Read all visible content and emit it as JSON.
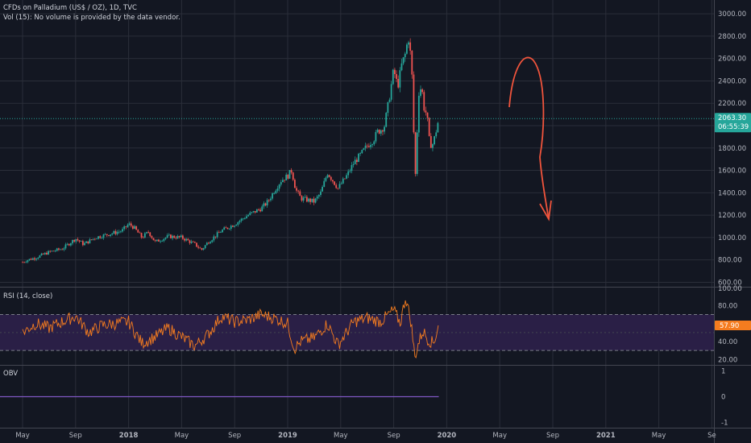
{
  "header": {
    "symbol_line": "CFDs on Palladium (US$ / OZ), 1D, TVC",
    "volume_line": "Vol (15): No volume is provided by the data vendor."
  },
  "indicators": {
    "rsi_label": "RSI (14, close)",
    "obv_label": "OBV"
  },
  "badges": {
    "last_price": "2063.30",
    "countdown": "06:55:39",
    "rsi_value": "57.90"
  },
  "colors": {
    "background": "#131722",
    "grid": "#2a2e39",
    "up": "#26a69a",
    "down": "#ef5350",
    "rsi_line": "#f57c1f",
    "rsi_band": "#2a1f46",
    "obv_line": "#7e57c2",
    "drawing": "#f0543c",
    "text": "#b2b5be"
  },
  "chart_data": [
    {
      "type": "candlestick",
      "title": "CFDs on Palladium (US$ / OZ), 1D, TVC",
      "y_axis_ticks": [
        600,
        800,
        1000,
        1200,
        1400,
        1600,
        1800,
        2000,
        2200,
        2400,
        2600,
        2800,
        3000
      ],
      "ylim": [
        560,
        3080
      ],
      "x_axis_ticks": [
        "May",
        "Sep",
        "2018",
        "May",
        "Sep",
        "2019",
        "May",
        "Sep",
        "2020",
        "May",
        "Sep",
        "2021",
        "May",
        "Se"
      ],
      "last_price": 2063.3,
      "price_path": [
        {
          "t": 0,
          "p": 780
        },
        {
          "t": 0.4,
          "p": 800
        },
        {
          "t": 1,
          "p": 820
        },
        {
          "t": 2,
          "p": 870
        },
        {
          "t": 3,
          "p": 900
        },
        {
          "t": 4,
          "p": 990
        },
        {
          "t": 4.6,
          "p": 940
        },
        {
          "t": 5.5,
          "p": 1000
        },
        {
          "t": 6.5,
          "p": 1030
        },
        {
          "t": 7.5,
          "p": 1060
        },
        {
          "t": 8,
          "p": 1120
        },
        {
          "t": 8.4,
          "p": 1090
        },
        {
          "t": 9,
          "p": 1000
        },
        {
          "t": 9.5,
          "p": 1050
        },
        {
          "t": 10,
          "p": 960
        },
        {
          "t": 11,
          "p": 1010
        },
        {
          "t": 12,
          "p": 1000
        },
        {
          "t": 13,
          "p": 940
        },
        {
          "t": 13.5,
          "p": 890
        },
        {
          "t": 14,
          "p": 960
        },
        {
          "t": 15,
          "p": 1060
        },
        {
          "t": 16,
          "p": 1120
        },
        {
          "t": 17,
          "p": 1200
        },
        {
          "t": 18,
          "p": 1260
        },
        {
          "t": 18.5,
          "p": 1320
        },
        {
          "t": 19,
          "p": 1420
        },
        {
          "t": 19.5,
          "p": 1510
        },
        {
          "t": 20,
          "p": 1550
        },
        {
          "t": 20.3,
          "p": 1600
        },
        {
          "t": 20.6,
          "p": 1430
        },
        {
          "t": 21,
          "p": 1350
        },
        {
          "t": 21.7,
          "p": 1330
        },
        {
          "t": 22,
          "p": 1320
        },
        {
          "t": 22.5,
          "p": 1400
        },
        {
          "t": 23,
          "p": 1580
        },
        {
          "t": 23.4,
          "p": 1510
        },
        {
          "t": 23.8,
          "p": 1440
        },
        {
          "t": 24.5,
          "p": 1560
        },
        {
          "t": 25,
          "p": 1670
        },
        {
          "t": 25.5,
          "p": 1740
        },
        {
          "t": 26,
          "p": 1820
        },
        {
          "t": 26.5,
          "p": 1880
        },
        {
          "t": 26.8,
          "p": 1950
        },
        {
          "t": 27,
          "p": 1960
        },
        {
          "t": 27.3,
          "p": 2000
        },
        {
          "t": 27.6,
          "p": 2200
        },
        {
          "t": 28,
          "p": 2500
        },
        {
          "t": 28.3,
          "p": 2350
        },
        {
          "t": 28.6,
          "p": 2540
        },
        {
          "t": 28.9,
          "p": 2650
        },
        {
          "t": 29.1,
          "p": 2800
        },
        {
          "t": 29.3,
          "p": 2600
        },
        {
          "t": 29.45,
          "p": 2300
        },
        {
          "t": 29.55,
          "p": 1700
        },
        {
          "t": 29.65,
          "p": 1550
        },
        {
          "t": 29.75,
          "p": 1900
        },
        {
          "t": 29.9,
          "p": 2300
        },
        {
          "t": 30.1,
          "p": 2350
        },
        {
          "t": 30.3,
          "p": 2150
        },
        {
          "t": 30.5,
          "p": 2100
        },
        {
          "t": 30.7,
          "p": 1850
        },
        {
          "t": 30.9,
          "p": 1820
        },
        {
          "t": 31.1,
          "p": 1900
        },
        {
          "t": 31.4,
          "p": 2063
        }
      ]
    },
    {
      "type": "line",
      "title": "RSI (14, close)",
      "y_axis_ticks": [
        20,
        40,
        60,
        80,
        100
      ],
      "ylim": [
        14,
        100
      ],
      "band": [
        30,
        70
      ],
      "last_value": 57.9,
      "rsi_path": [
        {
          "t": 0,
          "p": 50
        },
        {
          "t": 1,
          "p": 60
        },
        {
          "t": 2,
          "p": 55
        },
        {
          "t": 3,
          "p": 62
        },
        {
          "t": 4,
          "p": 68
        },
        {
          "t": 5,
          "p": 50
        },
        {
          "t": 6,
          "p": 58
        },
        {
          "t": 7,
          "p": 60
        },
        {
          "t": 8,
          "p": 62
        },
        {
          "t": 9,
          "p": 38
        },
        {
          "t": 10,
          "p": 45
        },
        {
          "t": 11,
          "p": 55
        },
        {
          "t": 12,
          "p": 45
        },
        {
          "t": 13,
          "p": 35
        },
        {
          "t": 14,
          "p": 48
        },
        {
          "t": 15,
          "p": 68
        },
        {
          "t": 16,
          "p": 62
        },
        {
          "t": 17,
          "p": 64
        },
        {
          "t": 18,
          "p": 70
        },
        {
          "t": 19,
          "p": 66
        },
        {
          "t": 20,
          "p": 60
        },
        {
          "t": 20.5,
          "p": 32
        },
        {
          "t": 21,
          "p": 40
        },
        {
          "t": 22,
          "p": 44
        },
        {
          "t": 23,
          "p": 60
        },
        {
          "t": 23.8,
          "p": 36
        },
        {
          "t": 25,
          "p": 62
        },
        {
          "t": 26,
          "p": 66
        },
        {
          "t": 27,
          "p": 62
        },
        {
          "t": 28,
          "p": 75
        },
        {
          "t": 28.5,
          "p": 60
        },
        {
          "t": 28.9,
          "p": 90
        },
        {
          "t": 29.3,
          "p": 62
        },
        {
          "t": 29.6,
          "p": 22
        },
        {
          "t": 29.8,
          "p": 35
        },
        {
          "t": 30.2,
          "p": 52
        },
        {
          "t": 30.6,
          "p": 42
        },
        {
          "t": 31,
          "p": 38
        },
        {
          "t": 31.4,
          "p": 57.9
        }
      ]
    },
    {
      "type": "line",
      "title": "OBV",
      "y_axis_ticks": [
        -1,
        0,
        1
      ],
      "ylim": [
        -1.2,
        1.2
      ],
      "values": [
        0
      ]
    }
  ]
}
